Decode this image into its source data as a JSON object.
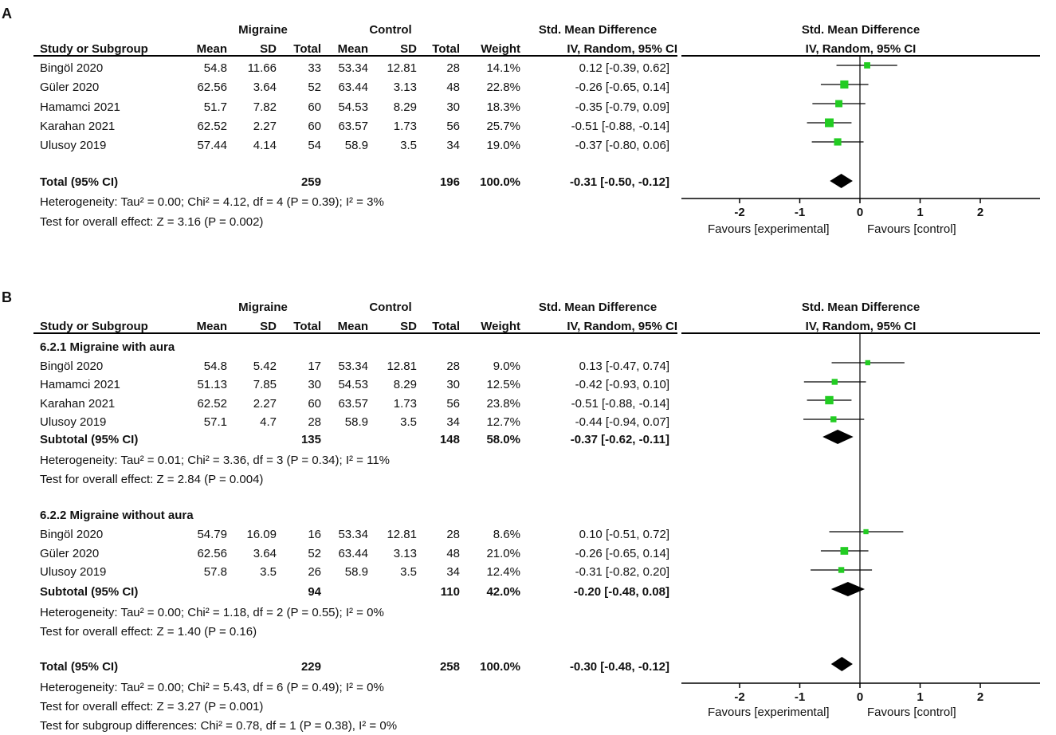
{
  "panel_a": {
    "label": "A",
    "header": {
      "group1": "Migraine",
      "group2": "Control",
      "effect_title": "Std. Mean Difference",
      "plot_title": "Std. Mean Difference",
      "study_col": "Study or Subgroup",
      "mean": "Mean",
      "sd": "SD",
      "total": "Total",
      "weight": "Weight",
      "method": "IV, Random, 95% CI",
      "plot_method": "IV, Random, 95% CI"
    },
    "studies": [
      {
        "name": "Bingöl 2020",
        "m1": "54.8",
        "sd1": "11.66",
        "n1": "33",
        "m2": "53.34",
        "sd2": "12.81",
        "n2": "28",
        "weight": "14.1%",
        "ci": "0.12 [-0.39, 0.62]"
      },
      {
        "name": "Güler 2020",
        "m1": "62.56",
        "sd1": "3.64",
        "n1": "52",
        "m2": "63.44",
        "sd2": "3.13",
        "n2": "48",
        "weight": "22.8%",
        "ci": "-0.26 [-0.65, 0.14]"
      },
      {
        "name": "Hamamci 2021",
        "m1": "51.7",
        "sd1": "7.82",
        "n1": "60",
        "m2": "54.53",
        "sd2": "8.29",
        "n2": "30",
        "weight": "18.3%",
        "ci": "-0.35 [-0.79, 0.09]"
      },
      {
        "name": "Karahan 2021",
        "m1": "62.52",
        "sd1": "2.27",
        "n1": "60",
        "m2": "63.57",
        "sd2": "1.73",
        "n2": "56",
        "weight": "25.7%",
        "ci": "-0.51 [-0.88, -0.14]"
      },
      {
        "name": "Ulusoy 2019",
        "m1": "57.44",
        "sd1": "4.14",
        "n1": "54",
        "m2": "58.9",
        "sd2": "3.5",
        "n2": "34",
        "weight": "19.0%",
        "ci": "-0.37 [-0.80, 0.06]"
      }
    ],
    "total": {
      "label": "Total (95% CI)",
      "n1": "259",
      "n2": "196",
      "weight": "100.0%",
      "ci": "-0.31 [-0.50, -0.12]"
    },
    "heterogeneity": "Heterogeneity: Tau² = 0.00; Chi² = 4.12, df = 4 (P = 0.39); I² = 3%",
    "overall": "Test for overall effect: Z = 3.16 (P = 0.002)",
    "favours_left": "Favours [experimental]",
    "favours_right": "Favours [control]"
  },
  "panel_b": {
    "label": "B",
    "header": {
      "group1": "Migraine",
      "group2": "Control",
      "effect_title": "Std. Mean Difference",
      "plot_title": "Std. Mean Difference",
      "study_col": "Study or Subgroup",
      "mean": "Mean",
      "sd": "SD",
      "total": "Total",
      "weight": "Weight",
      "method": "IV, Random, 95% CI",
      "plot_method": "IV, Random, 95% CI"
    },
    "subgroup1": {
      "title": "6.2.1 Migraine with aura",
      "studies": [
        {
          "name": "Bingöl 2020",
          "m1": "54.8",
          "sd1": "5.42",
          "n1": "17",
          "m2": "53.34",
          "sd2": "12.81",
          "n2": "28",
          "weight": "9.0%",
          "ci": "0.13 [-0.47, 0.74]"
        },
        {
          "name": "Hamamci 2021",
          "m1": "51.13",
          "sd1": "7.85",
          "n1": "30",
          "m2": "54.53",
          "sd2": "8.29",
          "n2": "30",
          "weight": "12.5%",
          "ci": "-0.42 [-0.93, 0.10]"
        },
        {
          "name": "Karahan 2021",
          "m1": "62.52",
          "sd1": "2.27",
          "n1": "60",
          "m2": "63.57",
          "sd2": "1.73",
          "n2": "56",
          "weight": "23.8%",
          "ci": "-0.51 [-0.88, -0.14]"
        },
        {
          "name": "Ulusoy 2019",
          "m1": "57.1",
          "sd1": "4.7",
          "n1": "28",
          "m2": "58.9",
          "sd2": "3.5",
          "n2": "34",
          "weight": "12.7%",
          "ci": "-0.44 [-0.94, 0.07]"
        }
      ],
      "subtotal": {
        "label": "Subtotal (95% CI)",
        "n1": "135",
        "n2": "148",
        "weight": "58.0%",
        "ci": "-0.37 [-0.62, -0.11]"
      },
      "heterogeneity": "Heterogeneity: Tau² = 0.01; Chi² = 3.36, df = 3 (P = 0.34); I² = 11%",
      "overall": "Test for overall effect: Z = 2.84 (P = 0.004)"
    },
    "subgroup2": {
      "title": "6.2.2 Migraine without aura",
      "studies": [
        {
          "name": "Bingöl 2020",
          "m1": "54.79",
          "sd1": "16.09",
          "n1": "16",
          "m2": "53.34",
          "sd2": "12.81",
          "n2": "28",
          "weight": "8.6%",
          "ci": "0.10 [-0.51, 0.72]"
        },
        {
          "name": "Güler 2020",
          "m1": "62.56",
          "sd1": "3.64",
          "n1": "52",
          "m2": "63.44",
          "sd2": "3.13",
          "n2": "48",
          "weight": "21.0%",
          "ci": "-0.26 [-0.65, 0.14]"
        },
        {
          "name": "Ulusoy 2019",
          "m1": "57.8",
          "sd1": "3.5",
          "n1": "26",
          "m2": "58.9",
          "sd2": "3.5",
          "n2": "34",
          "weight": "12.4%",
          "ci": "-0.31 [-0.82, 0.20]"
        }
      ],
      "subtotal": {
        "label": "Subtotal (95% CI)",
        "n1": "94",
        "n2": "110",
        "weight": "42.0%",
        "ci": "-0.20 [-0.48, 0.08]"
      },
      "heterogeneity": "Heterogeneity: Tau² = 0.00; Chi² = 1.18, df = 2 (P = 0.55); I² = 0%",
      "overall": "Test for overall effect: Z = 1.40 (P = 0.16)"
    },
    "total": {
      "label": "Total (95% CI)",
      "n1": "229",
      "n2": "258",
      "weight": "100.0%",
      "ci": "-0.30 [-0.48, -0.12]"
    },
    "heterogeneity": "Heterogeneity: Tau² = 0.00; Chi² = 5.43, df = 6 (P = 0.49); I² = 0%",
    "overall": "Test for overall effect: Z = 3.27 (P = 0.001)",
    "subgroup_diff": "Test for subgroup differences: Chi² = 0.78, df = 1 (P = 0.38), I² = 0%",
    "favours_left": "Favours [experimental]",
    "favours_right": "Favours [control]"
  },
  "colors": {
    "marker": "#22cc22",
    "diamond": "#000000",
    "line": "#000000"
  },
  "chart_data": [
    {
      "type": "forest",
      "title": "Std. Mean Difference",
      "xlabel": "Favours [experimental]   Favours [control]",
      "xlim": [
        -3,
        3
      ],
      "ticks": [
        "-2",
        "-1",
        "0",
        "1",
        "2"
      ],
      "tick_values": [
        -2,
        -1,
        0,
        1,
        2
      ],
      "studies": [
        {
          "name": "Bingöl 2020",
          "est": 0.12,
          "lo": -0.39,
          "hi": 0.62,
          "weight": 14.1
        },
        {
          "name": "Güler 2020",
          "est": -0.26,
          "lo": -0.65,
          "hi": 0.14,
          "weight": 22.8
        },
        {
          "name": "Hamamci 2021",
          "est": -0.35,
          "lo": -0.79,
          "hi": 0.09,
          "weight": 18.3
        },
        {
          "name": "Karahan 2021",
          "est": -0.51,
          "lo": -0.88,
          "hi": -0.14,
          "weight": 25.7
        },
        {
          "name": "Ulusoy 2019",
          "est": -0.37,
          "lo": -0.8,
          "hi": 0.06,
          "weight": 19.0
        }
      ],
      "pooled": [
        {
          "name": "Total (95% CI)",
          "est": -0.31,
          "lo": -0.5,
          "hi": -0.12
        }
      ]
    },
    {
      "type": "forest",
      "title": "Std. Mean Difference",
      "xlabel": "Favours [experimental]   Favours [control]",
      "xlim": [
        -3,
        3
      ],
      "ticks": [
        "-2",
        "-1",
        "0",
        "1",
        "2"
      ],
      "tick_values": [
        -2,
        -1,
        0,
        1,
        2
      ],
      "studies": [
        {
          "name": "Bingöl 2020 (with aura)",
          "est": 0.13,
          "lo": -0.47,
          "hi": 0.74,
          "weight": 9.0
        },
        {
          "name": "Hamamci 2021 (with aura)",
          "est": -0.42,
          "lo": -0.93,
          "hi": 0.1,
          "weight": 12.5
        },
        {
          "name": "Karahan 2021 (with aura)",
          "est": -0.51,
          "lo": -0.88,
          "hi": -0.14,
          "weight": 23.8
        },
        {
          "name": "Ulusoy 2019 (with aura)",
          "est": -0.44,
          "lo": -0.94,
          "hi": 0.07,
          "weight": 12.7
        },
        {
          "name": "Bingöl 2020 (without aura)",
          "est": 0.1,
          "lo": -0.51,
          "hi": 0.72,
          "weight": 8.6
        },
        {
          "name": "Güler 2020 (without aura)",
          "est": -0.26,
          "lo": -0.65,
          "hi": 0.14,
          "weight": 21.0
        },
        {
          "name": "Ulusoy 2019 (without aura)",
          "est": -0.31,
          "lo": -0.82,
          "hi": 0.2,
          "weight": 12.4
        }
      ],
      "pooled": [
        {
          "name": "Subtotal with aura",
          "est": -0.37,
          "lo": -0.62,
          "hi": -0.11
        },
        {
          "name": "Subtotal without aura",
          "est": -0.2,
          "lo": -0.48,
          "hi": 0.08
        },
        {
          "name": "Total (95% CI)",
          "est": -0.3,
          "lo": -0.48,
          "hi": -0.12
        }
      ]
    }
  ]
}
